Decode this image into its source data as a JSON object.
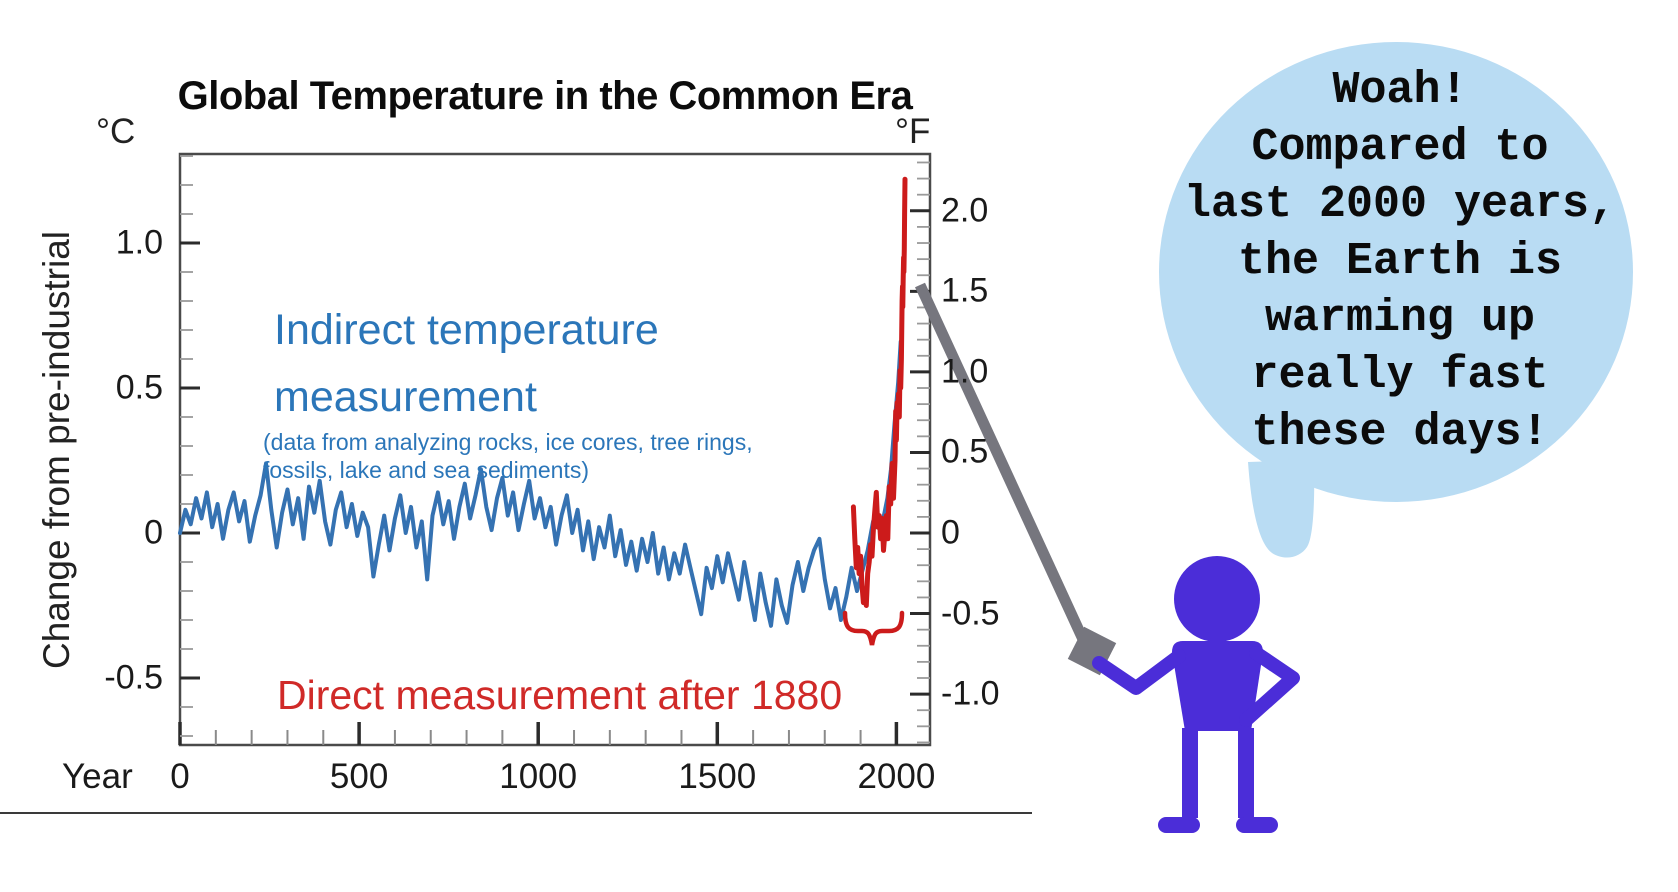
{
  "colors": {
    "indirect_line": "#3572b2",
    "direct_line": "#cc1b1b",
    "indirect_text": "#2b76b9",
    "direct_text": "#d02a28",
    "speech_bubble_fill": "#b9dcf3",
    "figure_fill": "#4b2dd8",
    "pointer_fill": "#76767e"
  },
  "chart_data": {
    "type": "line",
    "title": "Global Temperature in the Common Era",
    "x_axis": {
      "prefix": "Year",
      "ticks": [
        "0",
        "500",
        "1000",
        "1500",
        "2000"
      ],
      "minor_step": 100,
      "range": [
        0,
        2095
      ]
    },
    "y_axis_left": {
      "unit": "°C",
      "label": "Change from pre-industrial",
      "ticks": [
        "1.0",
        "0.5",
        "0",
        "-0.5"
      ],
      "minor_step": 0.1,
      "range": [
        -0.73,
        1.31
      ]
    },
    "y_axis_right": {
      "unit": "°F",
      "ticks": [
        "2.0",
        "1.5",
        "1.0",
        "0.5",
        "0",
        "-0.5",
        "-1.0"
      ],
      "minor_step": 0.1,
      "range": [
        -1.31,
        2.35
      ]
    },
    "series": [
      {
        "name": "Indirect temperature measurement",
        "color": "#3572b2",
        "x": [
          0,
          15,
          30,
          45,
          60,
          75,
          90,
          105,
          120,
          135,
          150,
          165,
          180,
          195,
          210,
          225,
          240,
          255,
          270,
          285,
          300,
          315,
          330,
          345,
          360,
          375,
          390,
          405,
          420,
          435,
          450,
          465,
          480,
          495,
          510,
          525,
          540,
          555,
          570,
          585,
          600,
          615,
          630,
          645,
          660,
          675,
          690,
          705,
          720,
          735,
          750,
          765,
          780,
          795,
          810,
          825,
          840,
          855,
          870,
          885,
          900,
          915,
          930,
          945,
          960,
          975,
          990,
          1005,
          1020,
          1035,
          1050,
          1065,
          1080,
          1095,
          1110,
          1125,
          1140,
          1155,
          1170,
          1185,
          1200,
          1215,
          1230,
          1245,
          1260,
          1275,
          1290,
          1305,
          1320,
          1335,
          1350,
          1365,
          1380,
          1395,
          1410,
          1425,
          1440,
          1455,
          1470,
          1485,
          1500,
          1515,
          1530,
          1545,
          1560,
          1575,
          1590,
          1605,
          1620,
          1635,
          1650,
          1665,
          1680,
          1695,
          1710,
          1725,
          1740,
          1755,
          1770,
          1785,
          1800,
          1815,
          1830,
          1845,
          1860,
          1875,
          1890,
          1905,
          1920,
          1935,
          1950,
          1965,
          1975,
          1985,
          1995,
          2005,
          2012
        ],
        "y": [
          0.0,
          0.08,
          0.03,
          0.12,
          0.05,
          0.14,
          0.02,
          0.1,
          -0.02,
          0.08,
          0.14,
          0.04,
          0.11,
          -0.03,
          0.06,
          0.13,
          0.24,
          0.08,
          -0.05,
          0.07,
          0.15,
          0.03,
          0.12,
          -0.02,
          0.16,
          0.07,
          0.18,
          0.04,
          -0.04,
          0.08,
          0.14,
          0.02,
          0.1,
          -0.01,
          0.07,
          0.02,
          -0.15,
          -0.04,
          0.06,
          -0.06,
          0.05,
          0.13,
          0.0,
          0.09,
          -0.05,
          0.04,
          -0.16,
          0.06,
          0.14,
          0.03,
          0.11,
          -0.02,
          0.09,
          0.17,
          0.05,
          0.13,
          0.22,
          0.09,
          0.01,
          0.12,
          0.19,
          0.06,
          0.14,
          0.01,
          0.1,
          0.18,
          0.05,
          0.12,
          0.02,
          0.09,
          -0.04,
          0.06,
          0.13,
          0.0,
          0.08,
          -0.06,
          0.04,
          -0.09,
          0.02,
          -0.05,
          0.06,
          -0.08,
          0.01,
          -0.11,
          -0.03,
          -0.13,
          -0.02,
          -0.1,
          0.0,
          -0.14,
          -0.05,
          -0.16,
          -0.07,
          -0.14,
          -0.04,
          -0.12,
          -0.2,
          -0.28,
          -0.12,
          -0.19,
          -0.08,
          -0.17,
          -0.07,
          -0.15,
          -0.23,
          -0.1,
          -0.2,
          -0.3,
          -0.14,
          -0.24,
          -0.32,
          -0.16,
          -0.25,
          -0.31,
          -0.18,
          -0.1,
          -0.2,
          -0.12,
          -0.06,
          -0.02,
          -0.16,
          -0.26,
          -0.19,
          -0.3,
          -0.22,
          -0.12,
          -0.2,
          -0.13,
          -0.06,
          0.04,
          0.02,
          0.06,
          0.12,
          0.22,
          0.38,
          0.52,
          0.66
        ]
      },
      {
        "name": "Direct measurement after 1880",
        "color": "#cc1b1b",
        "x": [
          1880,
          1884,
          1888,
          1892,
          1896,
          1900,
          1904,
          1908,
          1912,
          1916,
          1920,
          1924,
          1928,
          1932,
          1936,
          1940,
          1944,
          1948,
          1952,
          1956,
          1960,
          1964,
          1968,
          1972,
          1976,
          1980,
          1984,
          1988,
          1992,
          1996,
          1998,
          2000,
          2002,
          2004,
          2006,
          2008,
          2010,
          2012,
          2014,
          2016,
          2017,
          2018,
          2019,
          2020,
          2021,
          2022,
          2023,
          2024
        ],
        "y": [
          0.09,
          -0.02,
          -0.12,
          -0.05,
          -0.14,
          -0.08,
          -0.18,
          -0.24,
          -0.2,
          -0.25,
          -0.14,
          -0.1,
          -0.04,
          -0.08,
          0.02,
          0.08,
          0.14,
          0.02,
          0.06,
          -0.02,
          0.05,
          -0.06,
          0.0,
          0.06,
          -0.02,
          0.16,
          0.1,
          0.24,
          0.12,
          0.25,
          0.42,
          0.32,
          0.45,
          0.42,
          0.48,
          0.4,
          0.56,
          0.5,
          0.6,
          0.8,
          0.85,
          0.78,
          0.88,
          0.95,
          0.9,
          0.98,
          1.1,
          1.22
        ]
      }
    ]
  },
  "annotations": {
    "indirect": {
      "heading_lines": [
        "Indirect temperature",
        "measurement"
      ],
      "subtext_lines": [
        "(data from analyzing rocks, ice cores, tree rings,",
        "fossils, lake and sea sediments)"
      ]
    },
    "direct": {
      "label": "Direct measurement after 1880"
    }
  },
  "speech_bubble": {
    "lines": [
      "Woah!",
      "Compared to",
      "last 2000 years,",
      "the Earth is",
      "warming up",
      "really fast",
      "these days!"
    ]
  }
}
